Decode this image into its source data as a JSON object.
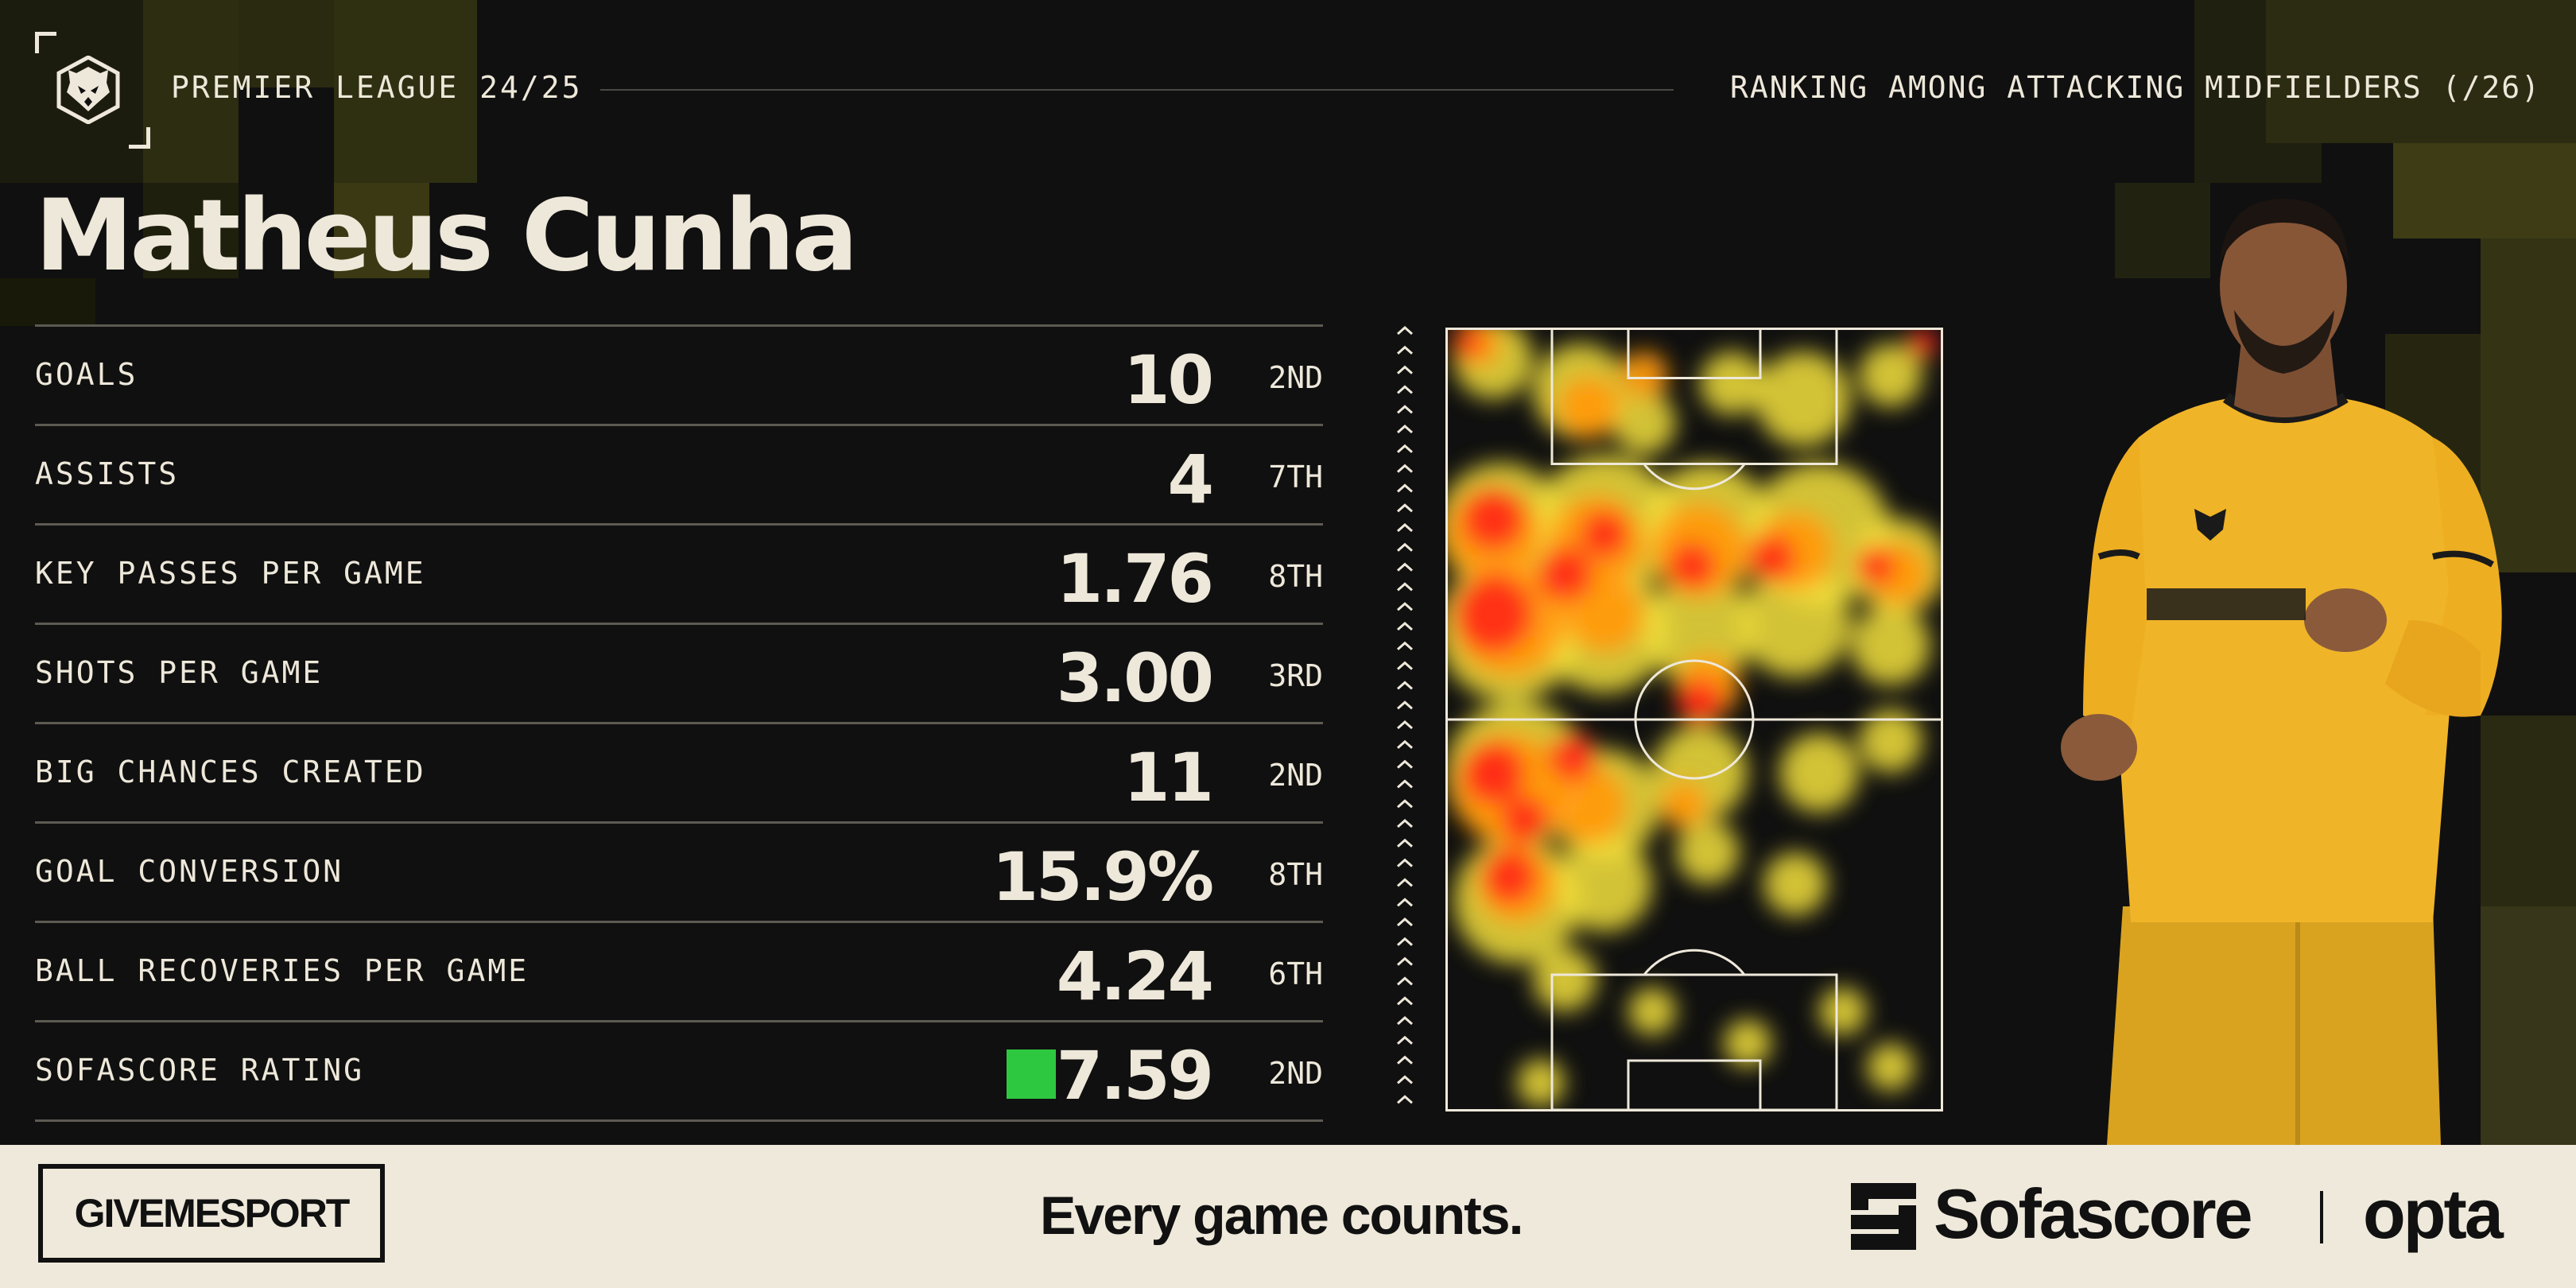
{
  "header": {
    "competition": "PREMIER LEAGUE 24/25",
    "ranking_label": "RANKING AMONG ATTACKING MIDFIELDERS (/26)"
  },
  "player": {
    "name": "Matheus Cunha"
  },
  "stats": [
    {
      "label": "GOALS",
      "value": "10",
      "rank": "2ND"
    },
    {
      "label": "ASSISTS",
      "value": "4",
      "rank": "7TH"
    },
    {
      "label": "KEY PASSES PER GAME",
      "value": "1.76",
      "rank": "8TH"
    },
    {
      "label": "SHOTS PER GAME",
      "value": "3.00",
      "rank": "3RD"
    },
    {
      "label": "BIG CHANCES CREATED",
      "value": "11",
      "rank": "2ND"
    },
    {
      "label": "GOAL CONVERSION",
      "value": "15.9%",
      "rank": "8TH"
    },
    {
      "label": "BALL RECOVERIES PER GAME",
      "value": "4.24",
      "rank": "6TH"
    },
    {
      "label": "SOFASCORE RATING",
      "value": "7.59",
      "rank": "2ND"
    }
  ],
  "colors": {
    "background": "#101010",
    "text": "#eee8da",
    "accent_block": "#3b3a12",
    "rating_badge": "#2ec840",
    "footer_bg": "#eee9da",
    "heat_hot": "#ff2a1a",
    "heat_mid": "#ff9a10",
    "heat_low": "#f5e23c"
  },
  "icons": {
    "club": "wolf-head-icon",
    "direction": "attack-direction-arrows-icon",
    "sofascore": "sofascore-logo-icon"
  },
  "footer": {
    "publisher": "GIVEMESPORT",
    "tagline": "Every game counts.",
    "partner1": "Sofascore",
    "partner2": "opta"
  }
}
